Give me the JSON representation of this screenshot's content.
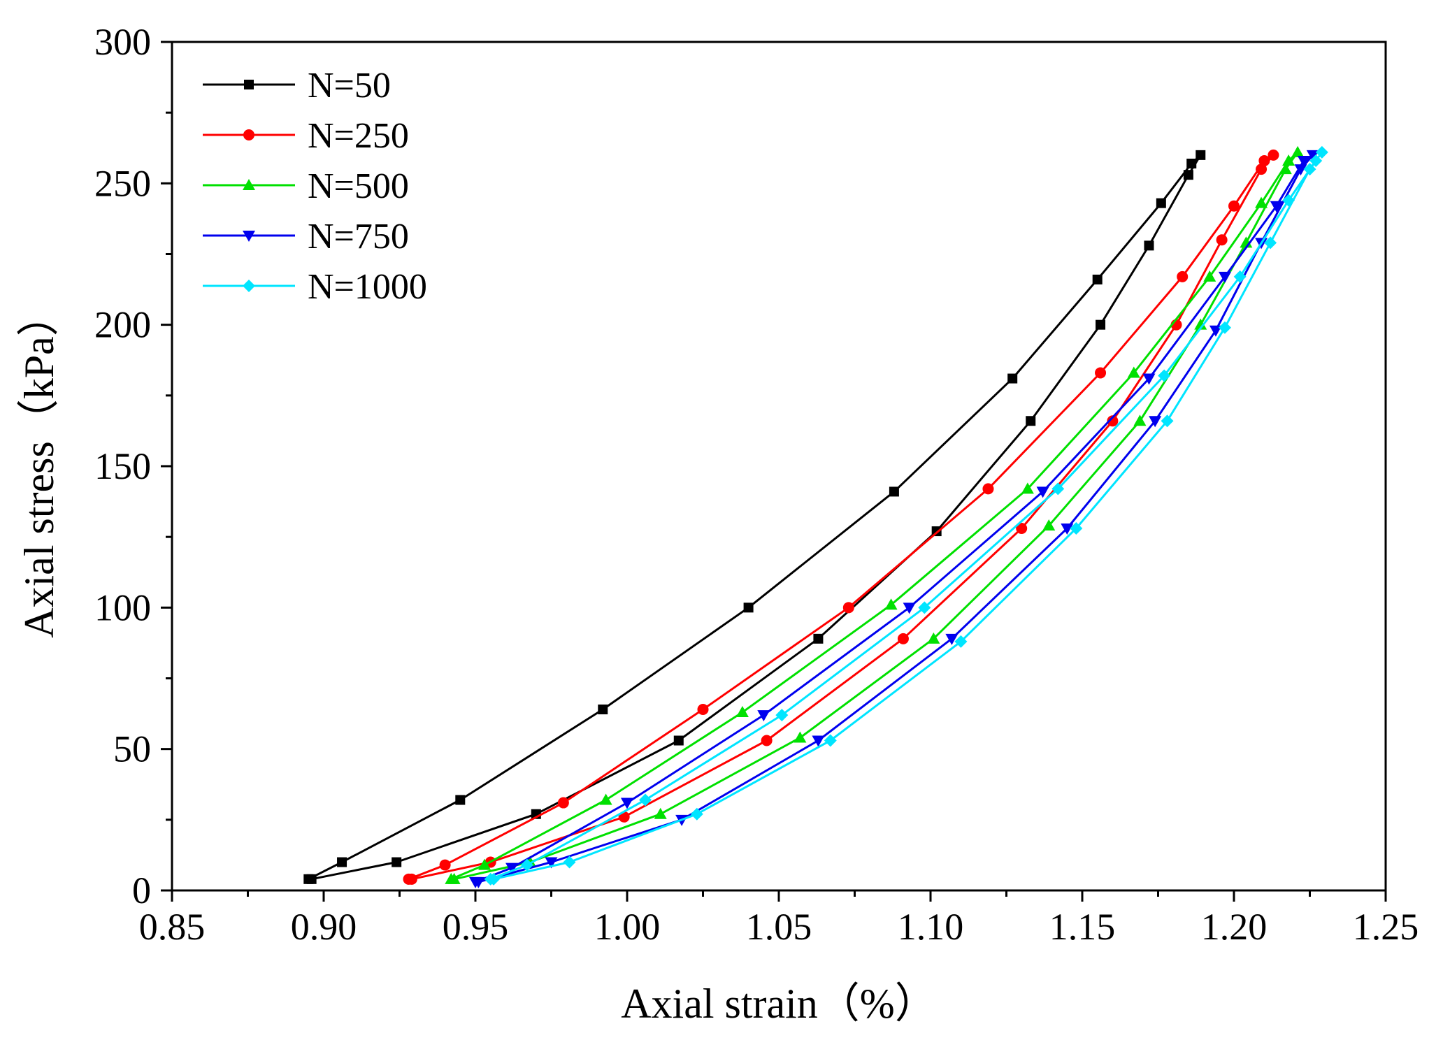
{
  "chart_data": {
    "type": "line",
    "title": "",
    "xlabel": "Axial strain（%）",
    "ylabel": "Axial stress（kPa）",
    "xlim": [
      0.85,
      1.25
    ],
    "ylim": [
      0,
      300
    ],
    "xticks": [
      0.85,
      0.9,
      0.95,
      1.0,
      1.05,
      1.1,
      1.15,
      1.2,
      1.25
    ],
    "xtick_labels": [
      "0.85",
      "0.90",
      "0.95",
      "1.00",
      "1.05",
      "1.10",
      "1.15",
      "1.20",
      "1.25"
    ],
    "yticks": [
      0,
      50,
      100,
      150,
      200,
      250,
      300
    ],
    "ytick_labels": [
      "0",
      "50",
      "100",
      "150",
      "200",
      "250",
      "300"
    ],
    "grid": false,
    "legend_position": "top-left",
    "series": [
      {
        "name": "N=50",
        "color": "#000000",
        "marker": "square",
        "x": [
          0.895,
          0.906,
          0.945,
          0.992,
          1.04,
          1.088,
          1.127,
          1.155,
          1.176,
          1.186,
          1.189,
          1.185,
          1.172,
          1.156,
          1.133,
          1.102,
          1.063,
          1.017,
          0.97,
          0.924,
          0.896
        ],
        "y": [
          4,
          10,
          32,
          64,
          100,
          141,
          181,
          216,
          243,
          257,
          260,
          253,
          228,
          200,
          166,
          127,
          89,
          53,
          27,
          10,
          4
        ]
      },
      {
        "name": "N=250",
        "color": "#ff0000",
        "marker": "circle",
        "x": [
          0.928,
          0.94,
          0.979,
          1.025,
          1.073,
          1.119,
          1.156,
          1.183,
          1.2,
          1.21,
          1.213,
          1.209,
          1.196,
          1.181,
          1.16,
          1.13,
          1.091,
          1.046,
          0.999,
          0.955,
          0.929
        ],
        "y": [
          4,
          9,
          31,
          64,
          100,
          142,
          183,
          217,
          242,
          258,
          260,
          255,
          230,
          200,
          166,
          128,
          89,
          53,
          26,
          10,
          4
        ]
      },
      {
        "name": "N=500",
        "color": "#00e000",
        "marker": "triangle-up",
        "x": [
          0.942,
          0.953,
          0.993,
          1.038,
          1.087,
          1.132,
          1.167,
          1.192,
          1.209,
          1.218,
          1.221,
          1.217,
          1.204,
          1.189,
          1.169,
          1.139,
          1.101,
          1.057,
          1.011,
          0.968,
          0.943
        ],
        "y": [
          4,
          9,
          32,
          63,
          101,
          142,
          183,
          217,
          243,
          258,
          261,
          255,
          229,
          200,
          166,
          129,
          89,
          54,
          27,
          10,
          4
        ]
      },
      {
        "name": "N=750",
        "color": "#0000ee",
        "marker": "triangle-down",
        "x": [
          0.95,
          0.962,
          1.0,
          1.045,
          1.093,
          1.137,
          1.172,
          1.197,
          1.214,
          1.223,
          1.226,
          1.222,
          1.209,
          1.194,
          1.174,
          1.145,
          1.107,
          1.063,
          1.018,
          0.975,
          0.951
        ],
        "y": [
          3,
          8,
          31,
          62,
          100,
          141,
          181,
          217,
          242,
          258,
          260,
          255,
          229,
          198,
          166,
          128,
          89,
          53,
          25,
          10,
          3
        ]
      },
      {
        "name": "N=1000",
        "color": "#00e5ff",
        "marker": "diamond",
        "x": [
          0.955,
          0.967,
          1.006,
          1.051,
          1.098,
          1.142,
          1.177,
          1.202,
          1.218,
          1.227,
          1.229,
          1.225,
          1.212,
          1.197,
          1.178,
          1.148,
          1.11,
          1.067,
          1.023,
          0.981,
          0.956
        ],
        "y": [
          4,
          9,
          32,
          62,
          100,
          142,
          182,
          217,
          244,
          258,
          261,
          255,
          229,
          199,
          166,
          128,
          88,
          53,
          27,
          10,
          4
        ]
      }
    ]
  }
}
